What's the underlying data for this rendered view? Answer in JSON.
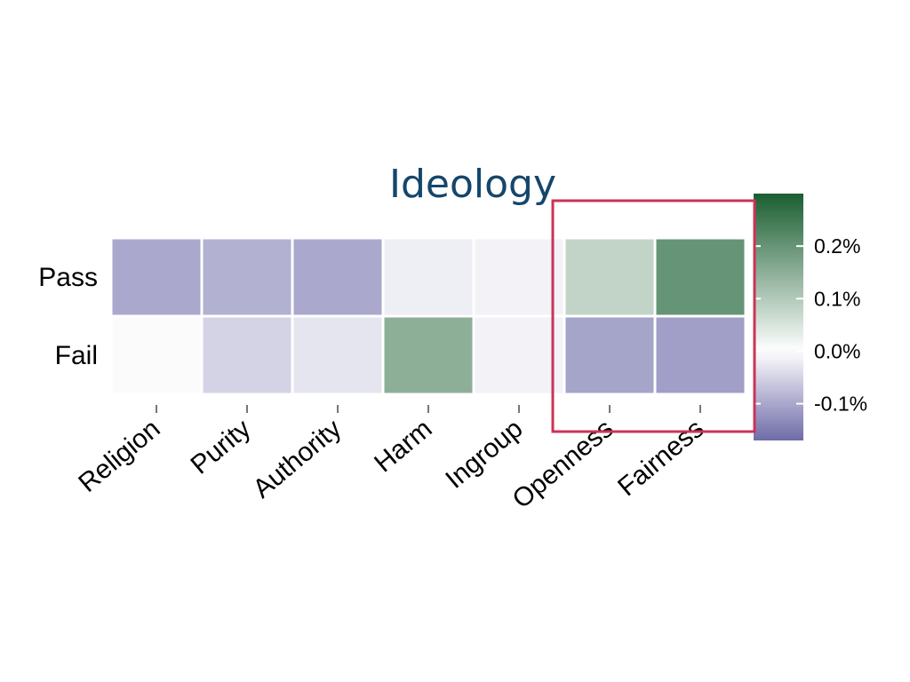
{
  "chart_data": {
    "type": "heatmap",
    "title": "Ideology",
    "rows": [
      "Pass",
      "Fail"
    ],
    "columns": [
      "Religion",
      "Purity",
      "Authority",
      "Harm",
      "Ingroup",
      "Openness",
      "Fairness"
    ],
    "values": [
      [
        -0.1,
        -0.09,
        -0.1,
        -0.02,
        -0.015,
        0.08,
        0.2
      ],
      [
        -0.005,
        -0.05,
        -0.03,
        0.15,
        -0.015,
        -0.105,
        -0.11
      ]
    ],
    "units": "%",
    "colorbar": {
      "min": -0.17,
      "max": 0.3,
      "ticks": [
        -0.1,
        0.0,
        0.1,
        0.2
      ],
      "tick_labels": [
        "-0.1%",
        "0.0%",
        "0.1%",
        "0.2%"
      ],
      "colors": {
        "negative": "#6e6ba8",
        "zero": "#ffffff",
        "positive": "#1a5e31"
      }
    },
    "highlight": {
      "columns": [
        "Openness",
        "Fairness"
      ],
      "color": "#cc3355"
    }
  }
}
